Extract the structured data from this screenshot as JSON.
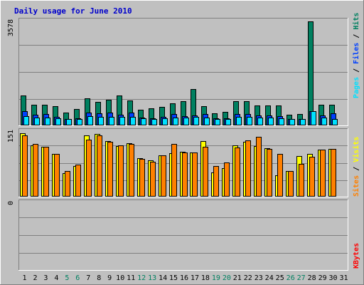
{
  "chart_data": {
    "type": "bar",
    "title": "Daily usage for June 2010",
    "categories": [
      "1",
      "2",
      "3",
      "4",
      "5",
      "6",
      "7",
      "8",
      "9",
      "10",
      "11",
      "12",
      "13",
      "14",
      "15",
      "16",
      "17",
      "18",
      "19",
      "20",
      "21",
      "22",
      "23",
      "24",
      "25",
      "26",
      "27",
      "28",
      "29",
      "30",
      "31"
    ],
    "weekend_days": [
      "5",
      "6",
      "12",
      "13",
      "19",
      "20",
      "26",
      "27"
    ],
    "colors": {
      "hits": "#008060",
      "files": "#0040ff",
      "pages": "#00e0ff",
      "visits": "#ffff00",
      "sites": "#ff8000",
      "kbytes": "#ff0000",
      "weekday_label": "#000000",
      "weekend_label": "#008060"
    },
    "panels": [
      {
        "name": "hits-files-pages",
        "ymax_label": "3578",
        "ylim": [
          0,
          3578
        ],
        "series_labels": [
          "Pages",
          "Files",
          "Hits"
        ],
        "series": [
          {
            "name": "Hits",
            "values": [
              1030,
              700,
              700,
              670,
              430,
              570,
              940,
              800,
              880,
              1030,
              850,
              540,
              580,
              630,
              760,
              830,
              1260,
              650,
              420,
              470,
              830,
              830,
              690,
              680,
              690,
              370,
              400,
              3578,
              710,
              720,
              0
            ]
          },
          {
            "name": "Files",
            "values": [
              500,
              370,
              380,
              300,
              210,
              250,
              430,
              420,
              450,
              370,
              440,
              260,
              250,
              290,
              390,
              330,
              340,
              400,
              240,
              240,
              400,
              400,
              350,
              340,
              310,
              230,
              230,
              490,
              340,
              410,
              0
            ]
          },
          {
            "name": "Pages",
            "values": [
              310,
              270,
              260,
              240,
              210,
              230,
              310,
              290,
              300,
              300,
              300,
              240,
              230,
              240,
              280,
              280,
              300,
              280,
              210,
              220,
              290,
              290,
              270,
              270,
              250,
              210,
              220,
              490,
              270,
              230,
              0
            ]
          }
        ]
      },
      {
        "name": "visits-sites",
        "ymax_label": "151",
        "ylim": [
          0,
          151
        ],
        "series_labels": [
          "Sites",
          "Visits"
        ],
        "series": [
          {
            "name": "Visits",
            "values": [
              148,
              120,
              116,
              99,
              54,
              72,
              143,
              146,
              130,
              118,
              124,
              89,
              84,
              97,
              102,
              105,
              103,
              130,
              57,
              67,
              119,
              127,
              117,
              113,
              50,
              60,
              94,
              100,
              110,
              112,
              0
            ]
          },
          {
            "name": "Sites",
            "values": [
              143,
              123,
              116,
              99,
              59,
              75,
              132,
              142,
              127,
              120,
              122,
              88,
              81,
              97,
              122,
              103,
              103,
              116,
              71,
              79,
              114,
              131,
              139,
              112,
              100,
              59,
              76,
              93,
              110,
              111,
              0
            ]
          }
        ]
      },
      {
        "name": "kbytes",
        "ymax_label": "0",
        "ylim": [
          0,
          1
        ],
        "series_labels": [
          "KBytes"
        ],
        "series": [
          {
            "name": "KBytes",
            "values": [
              0,
              0,
              0,
              0,
              0,
              0,
              0,
              0,
              0,
              0,
              0,
              0,
              0,
              0,
              0,
              0,
              0,
              0,
              0,
              0,
              0,
              0,
              0,
              0,
              0,
              0,
              0,
              0,
              0,
              0,
              0
            ]
          }
        ]
      }
    ]
  }
}
